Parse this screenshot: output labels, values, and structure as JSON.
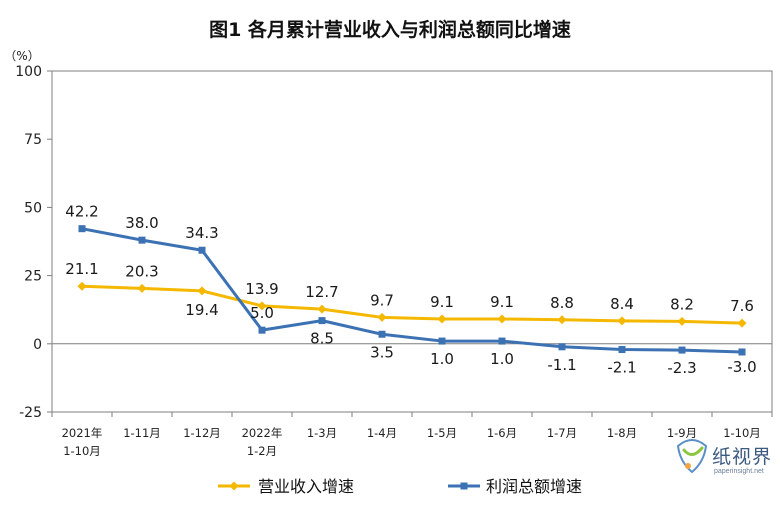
{
  "chart_data": {
    "type": "line",
    "title": "图1  各月累计营业收入与利润总额同比增速",
    "ylabel": "（%）",
    "ylim": [
      -25,
      100
    ],
    "yticks": [
      -25,
      0,
      25,
      50,
      75,
      100
    ],
    "grid": false,
    "legend_position": "bottom",
    "categories": [
      [
        "2021年",
        "1-10月"
      ],
      [
        "1-11月"
      ],
      [
        "1-12月"
      ],
      [
        "2022年",
        "1-2月"
      ],
      [
        "1-3月"
      ],
      [
        "1-4月"
      ],
      [
        "1-5月"
      ],
      [
        "1-6月"
      ],
      [
        "1-7月"
      ],
      [
        "1-8月"
      ],
      [
        "1-9月"
      ],
      [
        "1-10月"
      ]
    ],
    "series": [
      {
        "name": "营业收入增速",
        "color": "#f5b800",
        "marker": "diamond",
        "values": [
          21.1,
          20.3,
          19.4,
          13.9,
          12.7,
          9.7,
          9.1,
          9.1,
          8.8,
          8.4,
          8.2,
          7.6
        ],
        "labels": [
          "21.1",
          "20.3",
          "19.4",
          "13.9",
          "12.7",
          "9.7",
          "9.1",
          "9.1",
          "8.8",
          "8.4",
          "8.2",
          "7.6"
        ]
      },
      {
        "name": "利润总额增速",
        "color": "#3c72b4",
        "marker": "square",
        "values": [
          42.2,
          38.0,
          34.3,
          5.0,
          8.5,
          3.5,
          1.0,
          1.0,
          -1.1,
          -2.1,
          -2.3,
          -3.0
        ],
        "labels": [
          "42.2",
          "38.0",
          "34.3",
          "5.0",
          "8.5",
          "3.5",
          "1.0",
          "1.0",
          "-1.1",
          "-2.1",
          "-2.3",
          "-3.0"
        ]
      }
    ]
  },
  "watermark": {
    "title": "纸视界",
    "subtitle": "paperinsight.net"
  }
}
